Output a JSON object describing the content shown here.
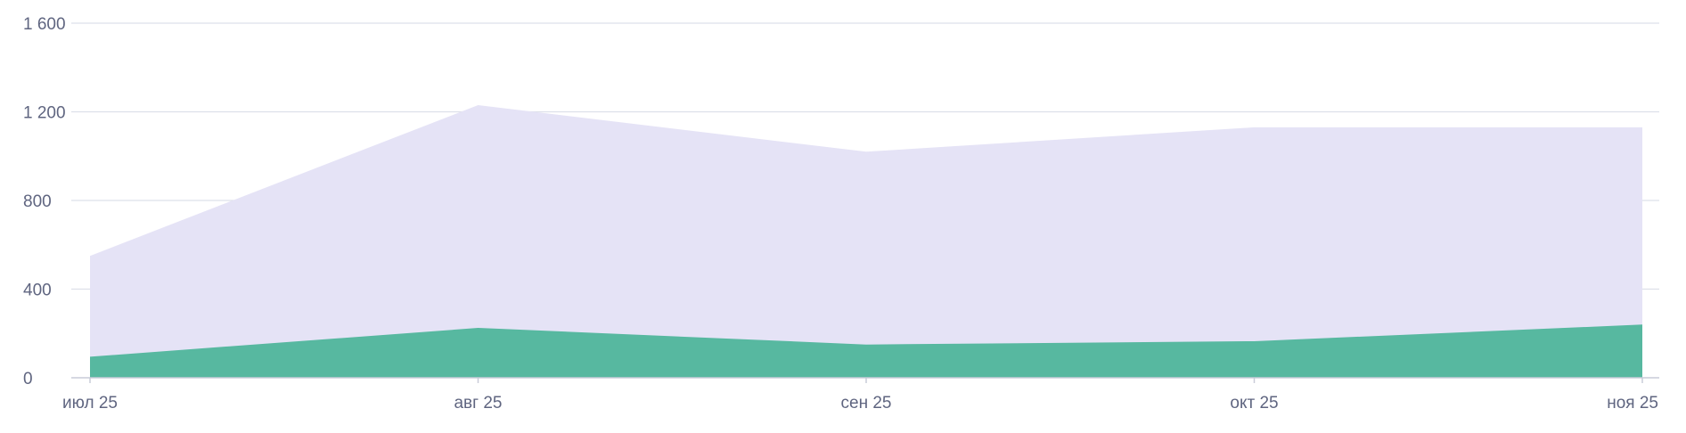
{
  "chart_data": {
    "type": "area",
    "stacked": false,
    "categories": [
      "июл 25",
      "авг 25",
      "сен 25",
      "окт 25",
      "ноя 25"
    ],
    "series": [
      {
        "values": [
          550,
          1230,
          1020,
          1130,
          1130
        ],
        "color": "#e5e3f6"
      },
      {
        "values": [
          95,
          225,
          150,
          165,
          240
        ],
        "color": "#57b8a0"
      }
    ],
    "ylim": [
      0,
      1600
    ],
    "yticks": [
      0,
      400,
      800,
      1200,
      1600
    ],
    "ytick_labels": [
      "0",
      "400",
      "800",
      "1 200",
      "1 600"
    ],
    "grid": true,
    "legend": "none"
  }
}
